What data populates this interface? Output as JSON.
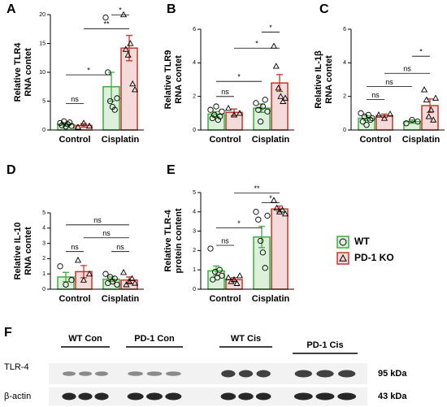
{
  "chart_data": [
    {
      "type": "bar",
      "panel": "A",
      "ylabel": [
        "Relative TLR4",
        "RNA contet"
      ],
      "categories": [
        "Control",
        "Cisplatin"
      ],
      "ylim": [
        0,
        20
      ],
      "yticks": [
        0,
        5,
        10,
        15,
        20
      ],
      "series": [
        {
          "name": "WT",
          "color": "#3fae3f",
          "marker": "circle",
          "values": [
            1.0,
            7.5
          ],
          "errors": [
            0.3,
            2.5
          ],
          "points": [
            [
              1.2,
              0.8,
              1.5,
              0.6,
              1.0,
              1.3,
              0.7
            ],
            [
              19.5,
              10,
              5,
              4,
              3.5,
              5.5
            ]
          ]
        },
        {
          "name": "PD-1 KO",
          "color": "#c0392b",
          "marker": "triangle",
          "values": [
            0.8,
            14.2
          ],
          "errors": [
            0.3,
            2.2
          ],
          "points": [
            [
              0.5,
              1.2,
              0.7
            ],
            [
              20,
              14,
              13,
              15,
              8,
              7
            ]
          ]
        }
      ],
      "annotations": [
        "ns",
        "*",
        "**",
        "*"
      ]
    },
    {
      "type": "bar",
      "panel": "B",
      "ylabel": [
        "Relative TLR9",
        "RNA contet"
      ],
      "categories": [
        "Control",
        "Cisplatin"
      ],
      "ylim": [
        0,
        6
      ],
      "yticks": [
        0,
        2,
        4,
        6
      ],
      "series": [
        {
          "name": "WT",
          "color": "#3fae3f",
          "marker": "circle",
          "values": [
            0.95,
            1.3
          ],
          "errors": [
            0.15,
            0.25
          ],
          "points": [
            [
              1.2,
              0.7,
              0.9,
              1.4,
              0.6,
              0.8,
              1.1
            ],
            [
              1.6,
              1.2,
              0.5,
              1.4,
              1.8,
              1.1
            ]
          ]
        },
        {
          "name": "PD-1 KO",
          "color": "#c0392b",
          "marker": "triangle",
          "values": [
            1.05,
            2.8
          ],
          "errors": [
            0.2,
            0.5
          ],
          "points": [
            [
              1.3,
              0.9,
              1.0
            ],
            [
              5.0,
              3.8,
              2.5,
              2.0,
              1.7,
              1.9
            ]
          ]
        }
      ],
      "annotations": [
        "ns",
        "*",
        "*",
        "*"
      ]
    },
    {
      "type": "bar",
      "panel": "C",
      "ylabel": [
        "Relative IL-1β",
        "RNA contet"
      ],
      "categories": [
        "Control",
        "Cisplatin"
      ],
      "ylim": [
        0,
        6
      ],
      "yticks": [
        0,
        2,
        4,
        6
      ],
      "series": [
        {
          "name": "WT",
          "color": "#3fae3f",
          "marker": "circle",
          "values": [
            0.7,
            0.5
          ],
          "errors": [
            0.15,
            0.1
          ],
          "points": [
            [
              1.0,
              0.5,
              0.8,
              0.3,
              0.9,
              0.6,
              0.7
            ],
            [
              0.4,
              0.6,
              0.5
            ]
          ]
        },
        {
          "name": "PD-1 KO",
          "color": "#c0392b",
          "marker": "triangle",
          "values": [
            0.85,
            1.45
          ],
          "errors": [
            0.1,
            0.4
          ],
          "points": [
            [
              0.9,
              0.7,
              0.95
            ],
            [
              2.4,
              1.8,
              0.8,
              1.2,
              0.6,
              1.9
            ]
          ]
        }
      ],
      "annotations": [
        "ns",
        "ns",
        "ns",
        "*"
      ]
    },
    {
      "type": "bar",
      "panel": "D",
      "ylabel": [
        "Relative IL-10",
        "RNA contet"
      ],
      "categories": [
        "Control",
        "Cisplatin"
      ],
      "ylim": [
        0,
        5
      ],
      "yticks": [
        0,
        1,
        2,
        3,
        4,
        5
      ],
      "series": [
        {
          "name": "WT",
          "color": "#3fae3f",
          "marker": "circle",
          "values": [
            0.8,
            0.65
          ],
          "errors": [
            0.3,
            0.15
          ],
          "points": [
            [
              1.5,
              0.3,
              0.6
            ],
            [
              1.0,
              0.4,
              0.8,
              0.5,
              0.7,
              0.3
            ]
          ]
        },
        {
          "name": "PD-1 KO",
          "color": "#c0392b",
          "marker": "triangle",
          "values": [
            1.15,
            0.6
          ],
          "errors": [
            0.4,
            0.2
          ],
          "points": [
            [
              1.9,
              0.6,
              1.0
            ],
            [
              1.1,
              0.3,
              0.5,
              0.7,
              0.4
            ]
          ]
        }
      ],
      "annotations": [
        "ns",
        "ns",
        "ns",
        "ns"
      ]
    },
    {
      "type": "bar",
      "panel": "E",
      "ylabel": [
        "Relative TLR-4",
        "protein content"
      ],
      "categories": [
        "Control",
        "Cisplatin"
      ],
      "ylim": [
        0,
        5
      ],
      "yticks": [
        0,
        1,
        2,
        3,
        4,
        5
      ],
      "series": [
        {
          "name": "WT",
          "color": "#3fae3f",
          "marker": "circle",
          "values": [
            0.95,
            2.7
          ],
          "errors": [
            0.25,
            0.55
          ],
          "points": [
            [
              2.1,
              0.5,
              0.9,
              0.6,
              1.0,
              0.7
            ],
            [
              4.0,
              3.6,
              2.5,
              1.9,
              1.1,
              3.8
            ]
          ]
        },
        {
          "name": "PD-1 KO",
          "color": "#c0392b",
          "marker": "triangle",
          "values": [
            0.5,
            4.15
          ],
          "errors": [
            0.1,
            0.15
          ],
          "points": [
            [
              0.6,
              0.4,
              0.5,
              0.3,
              0.7
            ],
            [
              4.6,
              4.2,
              4.0,
              4.1,
              3.9
            ]
          ]
        }
      ],
      "annotations": [
        "ns",
        "*",
        "**",
        "*"
      ]
    }
  ],
  "blot": {
    "panel": "F",
    "groups": [
      "WT Con",
      "PD-1 Con",
      "WT Cis",
      "PD-1 Cis"
    ],
    "rows": [
      {
        "label": "TLR-4",
        "size": "95 kDa"
      },
      {
        "label": "β-actin",
        "size": "43 kDa"
      }
    ]
  }
}
